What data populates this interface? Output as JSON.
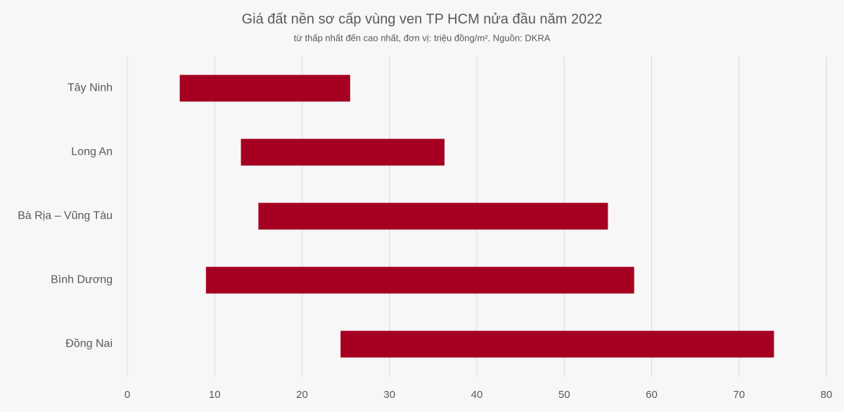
{
  "chart_data": {
    "type": "floating-bar",
    "title": "Giá đất nền sơ cấp vùng ven TP HCM nửa đầu năm 2022",
    "subtitle": "từ thấp nhất đến cao nhất, đơn vị: triệu đồng/m². Nguồn: DKRA",
    "categories": [
      "Tây Ninh",
      "Long An",
      "Bà Rịa – Vũng Tàu",
      "Bình Dương",
      "Đồng Nai"
    ],
    "low": [
      6,
      13,
      15,
      9,
      24.4
    ],
    "high": [
      25.5,
      36.3,
      55,
      58,
      74
    ],
    "color": "#a50021",
    "xlim": [
      0,
      80
    ],
    "xticks": [
      0,
      10,
      20,
      30,
      40,
      50,
      60,
      70,
      80
    ],
    "grid": true
  }
}
